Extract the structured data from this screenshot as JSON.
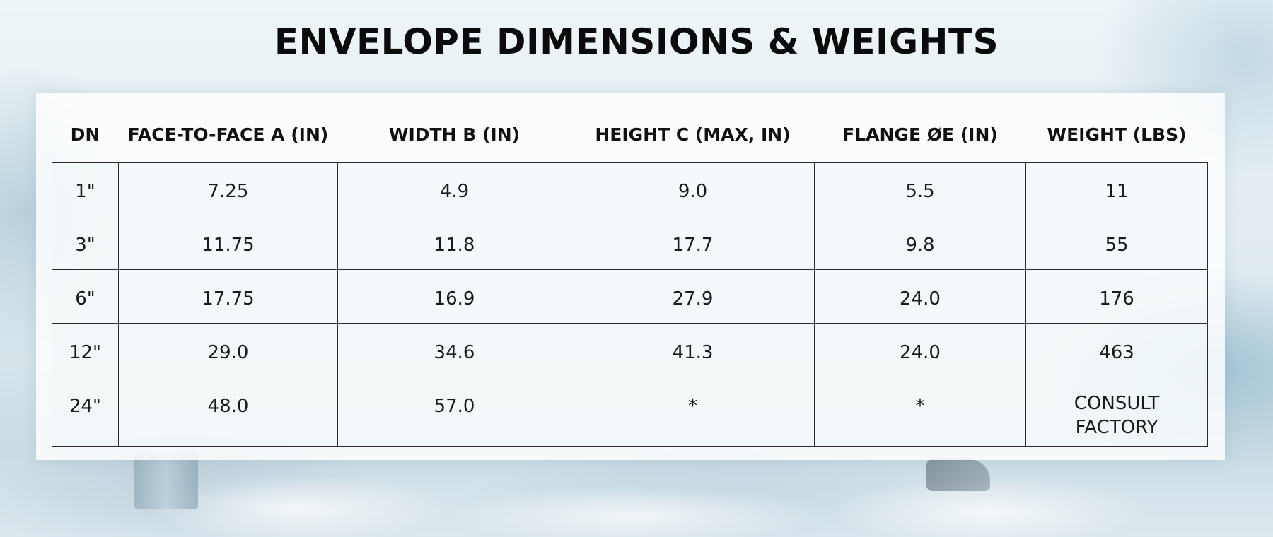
{
  "title": "ENVELOPE DIMENSIONS & WEIGHTS",
  "table": {
    "headers": [
      "DN",
      "FACE-TO-FACE A (IN)",
      "WIDTH B (IN)",
      "HEIGHT C (MAX, IN)",
      "FLANGE ØE (IN)",
      "WEIGHT (LBS)"
    ],
    "rows": [
      [
        "1\"",
        "7.25",
        "4.9",
        "9.0",
        "5.5",
        "11"
      ],
      [
        "3\"",
        "11.75",
        "11.8",
        "17.7",
        "9.8",
        "55"
      ],
      [
        "6\"",
        "17.75",
        "16.9",
        "27.9",
        "24.0",
        "176"
      ],
      [
        "12\"",
        "29.0",
        "34.6",
        "41.3",
        "24.0",
        "463"
      ],
      [
        "24\"",
        "48.0",
        "57.0",
        "*",
        "*",
        "CONSULT FACTORY"
      ]
    ],
    "weight_last_lines": [
      "CONSULT",
      "FACTORY"
    ]
  }
}
